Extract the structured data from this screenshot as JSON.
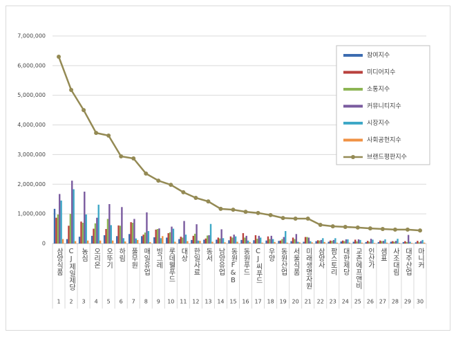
{
  "chart_data": {
    "type": "bar-line",
    "categories": [
      "삼양식품",
      "CJ제일제당",
      "농심",
      "오리온",
      "오뚜기",
      "하림",
      "풀무원",
      "매일유업",
      "빙그레",
      "롯데웰푸드",
      "대상",
      "한일사료",
      "동서",
      "남양유업",
      "동원F&B",
      "동원푸드",
      "CJ씨푸드",
      "우양",
      "동원산업",
      "서울식품",
      "미래생명자원",
      "삼양사",
      "팜스토리",
      "대한제당",
      "교촌에프앤비",
      "인산가",
      "샘표",
      "사조대림",
      "대주산업",
      "마니커"
    ],
    "category_numbers": [
      1,
      2,
      3,
      4,
      5,
      6,
      7,
      8,
      9,
      10,
      11,
      12,
      13,
      14,
      15,
      16,
      17,
      18,
      19,
      20,
      21,
      22,
      23,
      24,
      25,
      26,
      27,
      28,
      29,
      30
    ],
    "series": [
      {
        "name": "참여지수",
        "type": "bar",
        "color": "#3d6cb0",
        "values": [
          1170000,
          150000,
          230000,
          260000,
          280000,
          250000,
          320000,
          250000,
          210000,
          200000,
          150000,
          120000,
          130000,
          130000,
          110000,
          120000,
          110000,
          100000,
          90000,
          80000,
          60000,
          80000,
          60000,
          70000,
          60000,
          50000,
          50000,
          60000,
          50000,
          40000
        ]
      },
      {
        "name": "미디어지수",
        "type": "bar",
        "color": "#b9413d",
        "values": [
          870000,
          600000,
          740000,
          500000,
          490000,
          610000,
          720000,
          300000,
          470000,
          350000,
          230000,
          260000,
          170000,
          200000,
          240000,
          350000,
          280000,
          240000,
          100000,
          200000,
          220000,
          110000,
          100000,
          100000,
          130000,
          90000,
          100000,
          80000,
          80000,
          90000
        ]
      },
      {
        "name": "소통지수",
        "type": "bar",
        "color": "#8db554",
        "values": [
          980000,
          1000000,
          700000,
          680000,
          830000,
          600000,
          700000,
          370000,
          490000,
          380000,
          200000,
          330000,
          270000,
          170000,
          200000,
          200000,
          160000,
          150000,
          150000,
          150000,
          220000,
          100000,
          90000,
          80000,
          70000,
          60000,
          80000,
          60000,
          50000,
          40000
        ]
      },
      {
        "name": "커뮤니티지수",
        "type": "bar",
        "color": "#7a5b9f",
        "values": [
          1670000,
          2120000,
          1750000,
          870000,
          1330000,
          1230000,
          830000,
          1050000,
          510000,
          570000,
          760000,
          650000,
          280000,
          480000,
          300000,
          260000,
          260000,
          260000,
          220000,
          320000,
          200000,
          120000,
          120000,
          140000,
          140000,
          160000,
          90000,
          90000,
          290000,
          80000
        ]
      },
      {
        "name": "시장지수",
        "type": "bar",
        "color": "#3fa8c7",
        "values": [
          1450000,
          1830000,
          980000,
          1310000,
          620000,
          180000,
          170000,
          420000,
          180000,
          500000,
          300000,
          100000,
          660000,
          180000,
          240000,
          100000,
          200000,
          150000,
          420000,
          60000,
          80000,
          180000,
          180000,
          140000,
          120000,
          130000,
          140000,
          160000,
          60000,
          120000
        ]
      },
      {
        "name": "사회공헌지수",
        "type": "bar",
        "color": "#f09244",
        "values": [
          150000,
          80000,
          100000,
          100000,
          100000,
          70000,
          120000,
          50000,
          250000,
          60000,
          80000,
          90000,
          60000,
          40000,
          60000,
          50000,
          30000,
          50000,
          30000,
          40000,
          40000,
          50000,
          30000,
          30000,
          30000,
          20000,
          30000,
          20000,
          20000,
          30000
        ]
      },
      {
        "name": "브랜드평판지수",
        "type": "line",
        "color": "#948a54",
        "values": [
          6300000,
          5180000,
          4500000,
          3730000,
          3640000,
          2940000,
          2870000,
          2360000,
          2120000,
          1980000,
          1730000,
          1540000,
          1420000,
          1170000,
          1140000,
          1070000,
          1030000,
          960000,
          860000,
          840000,
          840000,
          630000,
          580000,
          560000,
          540000,
          510000,
          490000,
          470000,
          470000,
          440000
        ]
      }
    ],
    "ylim": [
      0,
      7000000
    ],
    "yticks": [
      0,
      {
        "value": 1000000,
        "label": "1,000,000"
      },
      {
        "value": 2000000,
        "label": "2,000,000"
      },
      {
        "value": 3000000,
        "label": "3,000,000"
      },
      {
        "value": 4000000,
        "label": "4,000,000"
      },
      {
        "value": 5000000,
        "label": "5,000,000"
      },
      {
        "value": 6000000,
        "label": "6,000,000"
      },
      {
        "value": 7000000,
        "label": "7,000,000"
      }
    ],
    "grid": true,
    "legend": "upper right"
  }
}
